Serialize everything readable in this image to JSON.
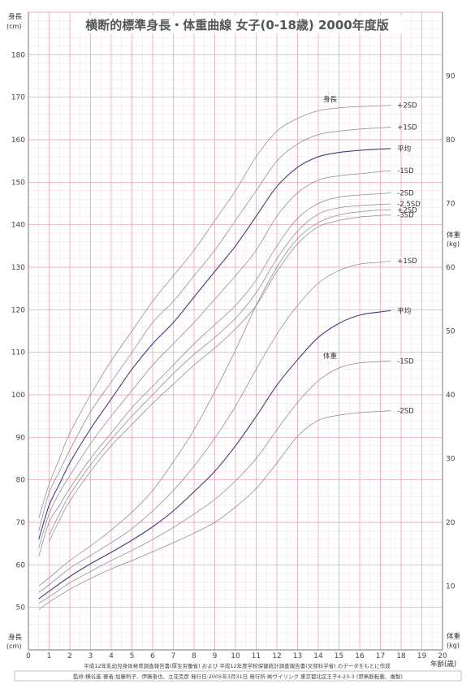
{
  "chart_data": {
    "type": "line",
    "title": "横断的標準身長・体重曲線 女子(0-18歳) 2000年度版",
    "source_note": "平成12年乳幼児身体発育調査報告書(厚生労働省) および 平成12年度学校保健統計調査報告書(文部科学省) のデータをもとに作成",
    "credit": "監修:横谷進 著者:加藤則子、伊藤善也、立花克彦 発行日:2005年3月31日 発行所:㈱ヴイリンク 東京都北区王子4-23-3 (禁無断転載、複製)",
    "x_axis": {
      "label": "年齢(歳)",
      "range": [
        0,
        20
      ],
      "ticks": [
        0,
        1,
        2,
        3,
        4,
        5,
        6,
        7,
        8,
        9,
        10,
        11,
        12,
        13,
        14,
        15,
        16,
        17,
        18,
        19,
        20
      ]
    },
    "y_axis_left": {
      "label_top": "身長",
      "unit_top": "(cm)",
      "label_bottom": "身長",
      "unit_bottom": "(cm)",
      "range": [
        40,
        190
      ],
      "ticks": [
        50,
        60,
        70,
        80,
        90,
        100,
        110,
        120,
        130,
        140,
        150,
        160,
        170,
        180
      ]
    },
    "y_axis_right": {
      "label_top": "体重",
      "unit_top": "(kg)",
      "label_bottom": "体重",
      "unit_bottom": "(kg)",
      "range": [
        0,
        100
      ],
      "ticks": [
        10,
        20,
        30,
        40,
        50,
        60,
        70,
        80,
        90
      ]
    },
    "height_group_label": "身長",
    "weight_group_label": "体重",
    "height_series": [
      {
        "name": "+2SD",
        "points": [
          [
            0.5,
            71
          ],
          [
            1,
            79
          ],
          [
            1.5,
            85
          ],
          [
            2,
            91
          ],
          [
            3,
            100
          ],
          [
            4,
            108
          ],
          [
            5,
            115
          ],
          [
            6,
            122
          ],
          [
            7,
            128
          ],
          [
            8,
            134
          ],
          [
            9,
            141
          ],
          [
            10,
            148
          ],
          [
            11,
            156
          ],
          [
            12,
            162
          ],
          [
            13,
            165
          ],
          [
            14,
            166.8
          ],
          [
            15,
            167.5
          ],
          [
            16,
            167.8
          ],
          [
            17,
            168
          ],
          [
            17.5,
            168.1
          ]
        ]
      },
      {
        "name": "+1SD",
        "points": [
          [
            0.5,
            68
          ],
          [
            1,
            77
          ],
          [
            1.5,
            82
          ],
          [
            2,
            87
          ],
          [
            3,
            96
          ],
          [
            4,
            103
          ],
          [
            5,
            110
          ],
          [
            6,
            117
          ],
          [
            7,
            122
          ],
          [
            8,
            128
          ],
          [
            9,
            134
          ],
          [
            10,
            141
          ],
          [
            11,
            148
          ],
          [
            12,
            155
          ],
          [
            13,
            159
          ],
          [
            14,
            161.2
          ],
          [
            15,
            162
          ],
          [
            16,
            162.5
          ],
          [
            17,
            162.8
          ],
          [
            17.5,
            163
          ]
        ]
      },
      {
        "name": "平均",
        "points": [
          [
            0.5,
            66
          ],
          [
            1,
            74
          ],
          [
            1.5,
            79
          ],
          [
            2,
            84
          ],
          [
            3,
            92
          ],
          [
            4,
            99
          ],
          [
            5,
            106
          ],
          [
            6,
            112
          ],
          [
            7,
            117
          ],
          [
            8,
            123
          ],
          [
            9,
            129
          ],
          [
            10,
            135
          ],
          [
            11,
            142
          ],
          [
            12,
            149
          ],
          [
            13,
            153.5
          ],
          [
            14,
            156
          ],
          [
            15,
            157
          ],
          [
            16,
            157.5
          ],
          [
            17,
            157.8
          ],
          [
            17.5,
            157.9
          ]
        ]
      },
      {
        "name": "-1SD",
        "points": [
          [
            0.5,
            64
          ],
          [
            1,
            72
          ],
          [
            1.5,
            77
          ],
          [
            2,
            81
          ],
          [
            3,
            88.5
          ],
          [
            4,
            95
          ],
          [
            5,
            101
          ],
          [
            6,
            107
          ],
          [
            7,
            112
          ],
          [
            8,
            117
          ],
          [
            9,
            122.5
          ],
          [
            10,
            128
          ],
          [
            11,
            134
          ],
          [
            12,
            142
          ],
          [
            13,
            147.5
          ],
          [
            14,
            150.5
          ],
          [
            15,
            151.5
          ],
          [
            16,
            152
          ],
          [
            17,
            152.5
          ],
          [
            17.5,
            152.7
          ]
        ]
      },
      {
        "name": "-2SD",
        "points": [
          [
            0.5,
            62
          ],
          [
            1,
            70
          ],
          [
            1.5,
            74
          ],
          [
            2,
            78
          ],
          [
            3,
            85
          ],
          [
            4,
            91
          ],
          [
            5,
            97
          ],
          [
            6,
            102
          ],
          [
            7,
            107
          ],
          [
            8,
            112
          ],
          [
            9,
            116.5
          ],
          [
            10,
            121
          ],
          [
            11,
            127
          ],
          [
            12,
            135
          ],
          [
            13,
            141.5
          ],
          [
            14,
            145
          ],
          [
            15,
            146.5
          ],
          [
            16,
            147
          ],
          [
            17,
            147.3
          ],
          [
            17.5,
            147.5
          ]
        ]
      },
      {
        "name": "-2.5SD",
        "points": [
          [
            1,
            67
          ],
          [
            1.5,
            72
          ],
          [
            2,
            76.5
          ],
          [
            3,
            83.5
          ],
          [
            4,
            89.5
          ],
          [
            5,
            95
          ],
          [
            6,
            100
          ],
          [
            7,
            105
          ],
          [
            8,
            109.5
          ],
          [
            9,
            113.5
          ],
          [
            10,
            118
          ],
          [
            11,
            124
          ],
          [
            12,
            132
          ],
          [
            13,
            138.5
          ],
          [
            14,
            142.5
          ],
          [
            15,
            144
          ],
          [
            16,
            144.5
          ],
          [
            17,
            144.8
          ],
          [
            17.5,
            144.9
          ]
        ]
      },
      {
        "name": "-3SD",
        "points": [
          [
            1,
            65.5
          ],
          [
            1.5,
            70.5
          ],
          [
            2,
            75
          ],
          [
            3,
            82
          ],
          [
            4,
            88
          ],
          [
            5,
            93
          ],
          [
            6,
            98
          ],
          [
            7,
            102.5
          ],
          [
            8,
            107
          ],
          [
            9,
            111
          ],
          [
            10,
            115.5
          ],
          [
            11,
            121
          ],
          [
            12,
            129
          ],
          [
            13,
            135.5
          ],
          [
            14,
            139.5
          ],
          [
            15,
            141
          ],
          [
            16,
            141.8
          ],
          [
            17,
            142.2
          ],
          [
            17.5,
            142.3
          ]
        ]
      }
    ],
    "weight_series": [
      {
        "name": "+2SD",
        "points": [
          [
            0.5,
            10
          ],
          [
            1,
            11.3
          ],
          [
            2,
            14
          ],
          [
            3,
            16.3
          ],
          [
            4,
            18.8
          ],
          [
            5,
            21.6
          ],
          [
            6,
            25
          ],
          [
            7,
            29.5
          ],
          [
            8,
            34.5
          ],
          [
            9,
            40.5
          ],
          [
            10,
            47
          ],
          [
            11,
            54
          ],
          [
            12,
            60
          ],
          [
            13,
            64.5
          ],
          [
            14,
            67
          ],
          [
            15,
            68.2
          ],
          [
            16,
            68.7
          ],
          [
            17,
            69
          ],
          [
            17.5,
            69
          ]
        ]
      },
      {
        "name": "+1SD",
        "points": [
          [
            0.5,
            9
          ],
          [
            1,
            10.2
          ],
          [
            2,
            12.8
          ],
          [
            3,
            14.8
          ],
          [
            4,
            16.8
          ],
          [
            5,
            19
          ],
          [
            6,
            21.8
          ],
          [
            7,
            25
          ],
          [
            8,
            28.8
          ],
          [
            9,
            33.2
          ],
          [
            10,
            38.2
          ],
          [
            11,
            44
          ],
          [
            12,
            49.5
          ],
          [
            13,
            54
          ],
          [
            14,
            57.5
          ],
          [
            15,
            59.5
          ],
          [
            16,
            60.5
          ],
          [
            17,
            60.8
          ],
          [
            17.5,
            61
          ]
        ]
      },
      {
        "name": "平均",
        "points": [
          [
            0.5,
            8
          ],
          [
            1,
            9.2
          ],
          [
            2,
            11.5
          ],
          [
            3,
            13.5
          ],
          [
            4,
            15.3
          ],
          [
            5,
            17.2
          ],
          [
            6,
            19.3
          ],
          [
            7,
            21.8
          ],
          [
            8,
            24.8
          ],
          [
            9,
            28
          ],
          [
            10,
            32
          ],
          [
            11,
            36.6
          ],
          [
            12,
            41.5
          ],
          [
            13,
            45.5
          ],
          [
            14,
            49
          ],
          [
            15,
            51.2
          ],
          [
            16,
            52.5
          ],
          [
            17,
            53
          ],
          [
            17.5,
            53.2
          ]
        ]
      },
      {
        "name": "-1SD",
        "points": [
          [
            0.5,
            7.3
          ],
          [
            1,
            8.3
          ],
          [
            2,
            10.5
          ],
          [
            3,
            12.3
          ],
          [
            4,
            14
          ],
          [
            5,
            15.6
          ],
          [
            6,
            17.3
          ],
          [
            7,
            19.2
          ],
          [
            8,
            21.3
          ],
          [
            9,
            23.6
          ],
          [
            10,
            26.5
          ],
          [
            11,
            30
          ],
          [
            12,
            34.5
          ],
          [
            13,
            38.8
          ],
          [
            14,
            42.2
          ],
          [
            15,
            44.2
          ],
          [
            16,
            45
          ],
          [
            17,
            45.2
          ],
          [
            17.5,
            45.3
          ]
        ]
      },
      {
        "name": "-2SD",
        "points": [
          [
            0.5,
            6.3
          ],
          [
            1,
            7.5
          ],
          [
            2,
            9.5
          ],
          [
            3,
            11.2
          ],
          [
            4,
            12.7
          ],
          [
            5,
            14
          ],
          [
            6,
            15.4
          ],
          [
            7,
            16.8
          ],
          [
            8,
            18.3
          ],
          [
            9,
            20
          ],
          [
            10,
            22.4
          ],
          [
            11,
            25.3
          ],
          [
            12,
            29.3
          ],
          [
            13,
            33.5
          ],
          [
            14,
            36
          ],
          [
            15,
            36.8
          ],
          [
            16,
            37.2
          ],
          [
            17,
            37.4
          ],
          [
            17.5,
            37.5
          ]
        ]
      }
    ],
    "grid": true,
    "legend": "inline-right"
  }
}
